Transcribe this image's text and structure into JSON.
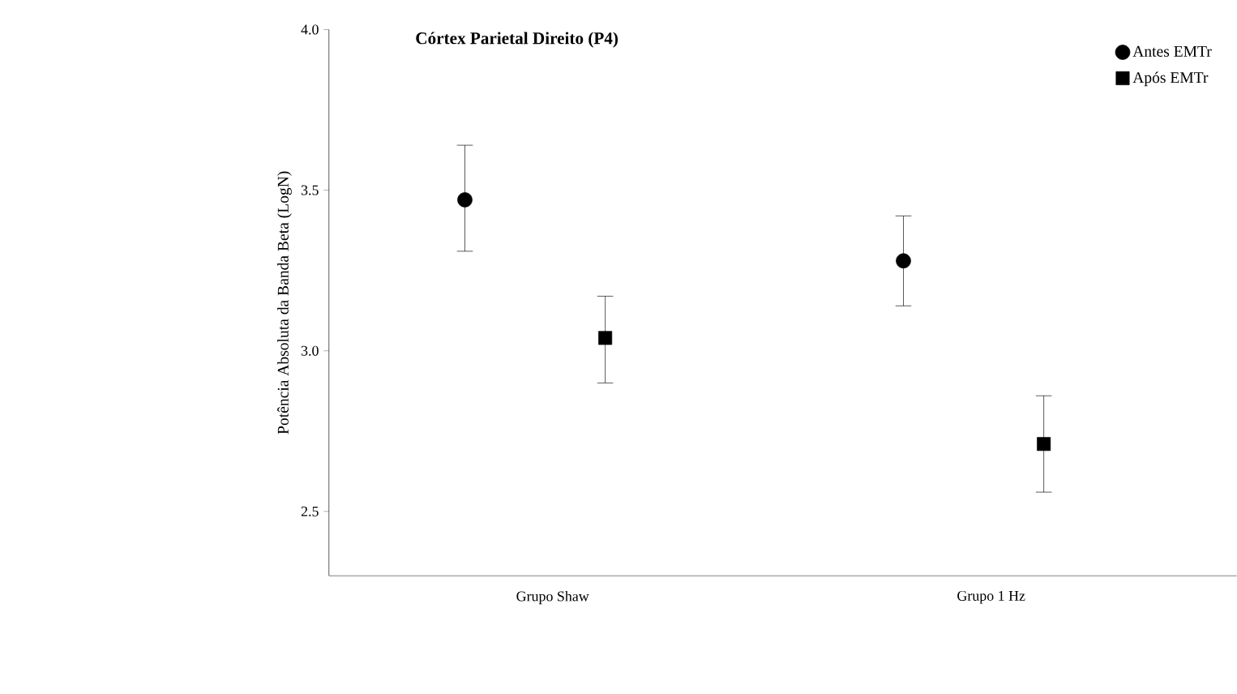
{
  "chart_data": {
    "type": "scatter",
    "title": "Córtex Parietal Direito (P4)",
    "ylabel": "Potência Absoluta da Banda Beta (LogN)",
    "categories": [
      "Grupo Shaw",
      "Grupo 1 Hz"
    ],
    "series": [
      {
        "name": "Antes EMTr",
        "color": "#000000",
        "marker": "circle",
        "values": [
          3.47,
          3.28
        ],
        "errors": [
          [
            3.31,
            3.64
          ],
          [
            3.14,
            3.42
          ]
        ]
      },
      {
        "name": "Após EMTr",
        "color": "#000000",
        "marker": "square",
        "values": [
          3.04,
          2.71
        ],
        "errors": [
          [
            2.9,
            3.17
          ],
          [
            2.56,
            2.86
          ]
        ]
      }
    ],
    "ylim": [
      2.3,
      4.0
    ],
    "yticks": [
      {
        "value": 2.5,
        "label": "2.5"
      },
      {
        "value": 3.0,
        "label": "3.0"
      },
      {
        "value": 3.5,
        "label": "3.5"
      },
      {
        "value": 4.0,
        "label": "4.0"
      }
    ],
    "grid": false,
    "legend": "top right"
  }
}
